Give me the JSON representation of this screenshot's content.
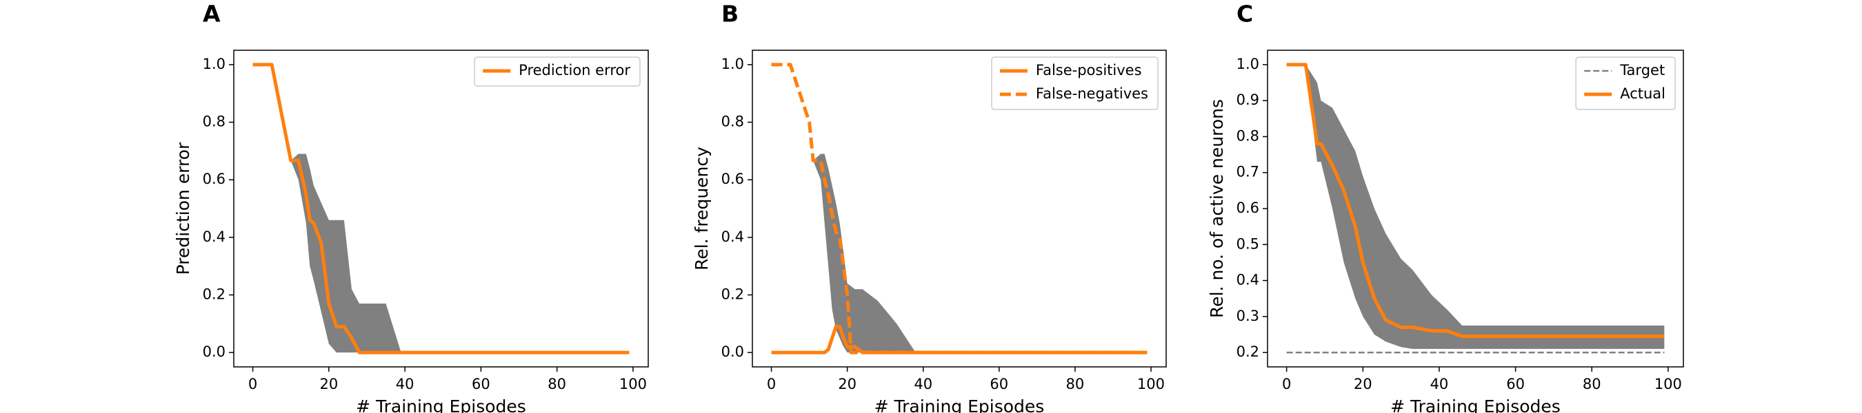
{
  "chart_data": [
    {
      "type": "line",
      "title": "A",
      "xlabel": "# Training Episodes",
      "ylabel": "Prediction error",
      "x": [
        0,
        5,
        10,
        12,
        14,
        15,
        16,
        18,
        20,
        22,
        24,
        26,
        28,
        30,
        35,
        39,
        99
      ],
      "series": [
        {
          "name": "Prediction error",
          "color": "#ff7f0e",
          "dash": "solid",
          "values": [
            1,
            1,
            0.667,
            0.667,
            0.55,
            0.46,
            0.45,
            0.38,
            0.17,
            0.09,
            0.09,
            0.05,
            0,
            0,
            0,
            0,
            0
          ]
        }
      ],
      "band": {
        "color": "#808080",
        "upper": [
          1,
          1,
          0.667,
          0.69,
          0.69,
          0.64,
          0.58,
          0.52,
          0.46,
          0.46,
          0.46,
          0.22,
          0.17,
          0.17,
          0.17,
          0,
          0
        ],
        "lower": [
          1,
          1,
          0.667,
          0.6,
          0.45,
          0.3,
          0.25,
          0.14,
          0.03,
          0,
          0,
          0,
          0,
          0,
          0,
          0,
          0
        ]
      },
      "xlim": [
        -5,
        104
      ],
      "ylim": [
        -0.05,
        1.05
      ],
      "xticks": [
        0,
        20,
        40,
        60,
        80,
        100
      ],
      "yticks": [
        {
          "value": 0,
          "label": "0.0"
        },
        0.2,
        0.4,
        0.6,
        0.8,
        {
          "value": 1,
          "label": "1.0"
        }
      ],
      "legend": "upper right"
    },
    {
      "type": "line",
      "title": "B",
      "xlabel": "# Training Episodes",
      "ylabel": "Rel. frequency",
      "x": [
        0,
        5,
        10,
        11,
        13,
        14,
        15,
        16,
        17,
        18,
        19,
        20,
        21,
        22,
        24,
        28,
        33,
        38,
        99
      ],
      "series": [
        {
          "name": "False-positives",
          "color": "#ff7f0e",
          "dash": "solid",
          "values": [
            0,
            0,
            0,
            0,
            0,
            0,
            0.01,
            0.05,
            0.09,
            0.09,
            0.05,
            0.02,
            0.02,
            0.02,
            0,
            0,
            0,
            0,
            0
          ]
        },
        {
          "name": "False-negatives",
          "color": "#ff7f0e",
          "dash": "dashed",
          "values": [
            1,
            1,
            0.8,
            0.667,
            0.667,
            0.6,
            0.55,
            0.48,
            0.42,
            0.4,
            0.3,
            0.2,
            0,
            0,
            0,
            0,
            0,
            0,
            0
          ]
        }
      ],
      "band": {
        "color": "#808080",
        "upper": [
          1,
          1,
          0.8,
          0.667,
          0.69,
          0.69,
          0.64,
          0.58,
          0.52,
          0.45,
          0.35,
          0.24,
          0.23,
          0.22,
          0.22,
          0.18,
          0.1,
          0,
          0
        ],
        "lower": [
          1,
          1,
          0.8,
          0.667,
          0.6,
          0.45,
          0.3,
          0.15,
          0.08,
          0.05,
          0.02,
          0,
          0,
          0,
          0,
          0,
          0,
          0,
          0
        ]
      },
      "xlim": [
        -5,
        104
      ],
      "ylim": [
        -0.05,
        1.05
      ],
      "xticks": [
        0,
        20,
        40,
        60,
        80,
        100
      ],
      "yticks": [
        {
          "value": 0,
          "label": "0.0"
        },
        0.2,
        0.4,
        0.6,
        0.8,
        {
          "value": 1,
          "label": "1.0"
        }
      ],
      "legend": "upper right"
    },
    {
      "type": "line",
      "title": "C",
      "xlabel": "# Training Episodes",
      "ylabel": "Rel. no. of active neurons",
      "x": [
        0,
        5,
        8,
        9,
        12,
        15,
        18,
        20,
        23,
        26,
        30,
        33,
        38,
        42,
        46,
        60,
        99
      ],
      "series": [
        {
          "name": "Target",
          "color": "#808080",
          "dash": "thin-dashed",
          "values": [
            0.2,
            0.2,
            0.2,
            0.2,
            0.2,
            0.2,
            0.2,
            0.2,
            0.2,
            0.2,
            0.2,
            0.2,
            0.2,
            0.2,
            0.2,
            0.2,
            0.2
          ]
        },
        {
          "name": "Actual",
          "color": "#ff7f0e",
          "dash": "solid",
          "values": [
            1,
            1,
            0.78,
            0.78,
            0.72,
            0.65,
            0.55,
            0.45,
            0.35,
            0.29,
            0.27,
            0.27,
            0.26,
            0.26,
            0.245,
            0.245,
            0.245
          ]
        }
      ],
      "band": {
        "color": "#808080",
        "upper": [
          1,
          1,
          0.95,
          0.9,
          0.88,
          0.82,
          0.76,
          0.69,
          0.6,
          0.53,
          0.46,
          0.43,
          0.36,
          0.32,
          0.275,
          0.275,
          0.275
        ],
        "lower": [
          1,
          1,
          0.73,
          0.73,
          0.6,
          0.45,
          0.35,
          0.3,
          0.25,
          0.23,
          0.215,
          0.21,
          0.21,
          0.21,
          0.21,
          0.21,
          0.21
        ]
      },
      "xlim": [
        -5,
        104
      ],
      "ylim": [
        0.16,
        1.04
      ],
      "xticks": [
        0,
        20,
        40,
        60,
        80,
        100
      ],
      "yticks": [
        0.2,
        0.3,
        0.4,
        0.5,
        0.6,
        0.7,
        0.8,
        0.9,
        {
          "value": 1,
          "label": "1.0"
        }
      ],
      "legend": "upper right"
    }
  ]
}
